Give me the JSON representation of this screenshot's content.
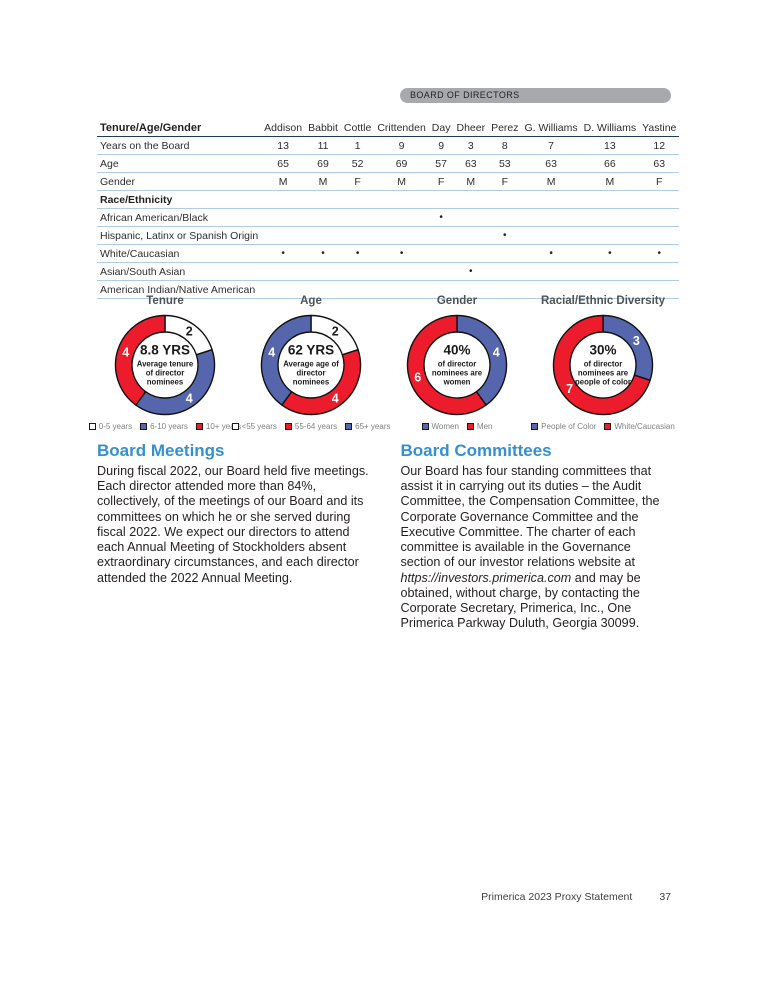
{
  "banner": {
    "label": "BOARD OF DIRECTORS"
  },
  "table": {
    "header_label": "Tenure/Age/Gender",
    "columns": [
      "Addison",
      "Babbit",
      "Cottle",
      "Crittenden",
      "Day",
      "Dheer",
      "Perez",
      "G. Williams",
      "D. Williams",
      "Yastine"
    ],
    "rows": [
      {
        "label": "Years on the Board",
        "section": false,
        "values": [
          "13",
          "11",
          "1",
          "9",
          "9",
          "3",
          "8",
          "7",
          "13",
          "12"
        ]
      },
      {
        "label": "Age",
        "section": false,
        "values": [
          "65",
          "69",
          "52",
          "69",
          "57",
          "63",
          "53",
          "63",
          "66",
          "63"
        ]
      },
      {
        "label": "Gender",
        "section": false,
        "values": [
          "M",
          "M",
          "F",
          "M",
          "F",
          "M",
          "F",
          "M",
          "M",
          "F"
        ]
      },
      {
        "label": "Race/Ethnicity",
        "section": true,
        "values": [
          "",
          "",
          "",
          "",
          "",
          "",
          "",
          "",
          "",
          ""
        ]
      },
      {
        "label": "African American/Black",
        "section": false,
        "values": [
          "",
          "",
          "",
          "",
          "•",
          "",
          "",
          "",
          "",
          ""
        ]
      },
      {
        "label": "Hispanic, Latinx or Spanish Origin",
        "section": false,
        "values": [
          "",
          "",
          "",
          "",
          "",
          "",
          "•",
          "",
          "",
          ""
        ]
      },
      {
        "label": "White/Caucasian",
        "section": false,
        "values": [
          "•",
          "•",
          "•",
          "•",
          "",
          "",
          "",
          "•",
          "•",
          "•"
        ]
      },
      {
        "label": "Asian/South Asian",
        "section": false,
        "values": [
          "",
          "",
          "",
          "",
          "",
          "•",
          "",
          "",
          "",
          ""
        ]
      },
      {
        "label": "American Indian/Native American",
        "section": false,
        "values": [
          "",
          "",
          "",
          "",
          "",
          "",
          "",
          "",
          "",
          ""
        ]
      }
    ]
  },
  "chart_data": [
    {
      "type": "pie",
      "subtype": "donut",
      "title": "Tenure",
      "center_value": "8.8 YRS",
      "center_caption": "Average tenure of director nominees",
      "legend_position": "bottom",
      "segments": [
        {
          "label": "0-5 years",
          "value": 2,
          "color": "#ffffff",
          "label_color": "#1a1a1a"
        },
        {
          "label": "6-10 years",
          "value": 4,
          "color": "#5566ad",
          "label_color": "#ffffff"
        },
        {
          "label": "10+ years",
          "value": 4,
          "color": "#ec1c2c",
          "label_color": "#ffffff"
        }
      ]
    },
    {
      "type": "pie",
      "subtype": "donut",
      "title": "Age",
      "center_value": "62 YRS",
      "center_caption": "Average age of director nominees",
      "legend_position": "bottom",
      "segments": [
        {
          "label": "<55 years",
          "value": 2,
          "color": "#ffffff",
          "label_color": "#1a1a1a"
        },
        {
          "label": "55-64 years",
          "value": 4,
          "color": "#ec1c2c",
          "label_color": "#ffffff"
        },
        {
          "label": "65+ years",
          "value": 4,
          "color": "#5566ad",
          "label_color": "#ffffff"
        }
      ]
    },
    {
      "type": "pie",
      "subtype": "donut",
      "title": "Gender",
      "center_value": "40%",
      "center_caption": "of director nominees are women",
      "legend_position": "bottom",
      "segments": [
        {
          "label": "Women",
          "value": 4,
          "color": "#5566ad",
          "label_color": "#ffffff"
        },
        {
          "label": "Men",
          "value": 6,
          "color": "#ec1c2c",
          "label_color": "#ffffff"
        }
      ]
    },
    {
      "type": "pie",
      "subtype": "donut",
      "title": "Racial/Ethnic Diversity",
      "center_value": "30%",
      "center_caption": "of director nominees are people of color",
      "legend_position": "bottom",
      "segments": [
        {
          "label": "People of Color",
          "value": 3,
          "color": "#5566ad",
          "label_color": "#ffffff"
        },
        {
          "label": "White/Caucasian",
          "value": 7,
          "color": "#ec1c2c",
          "label_color": "#ffffff"
        }
      ]
    }
  ],
  "sections": {
    "board_meetings": {
      "heading": "Board Meetings",
      "body": "During fiscal 2022, our Board held five meetings. Each director attended more than 84%, collectively, of the meetings of our Board and its committees on which he or she served during fiscal 2022. We expect our directors to attend each Annual Meeting of Stockholders absent extraordinary circumstances, and each director attended the 2022 Annual Meeting."
    },
    "board_committees": {
      "heading": "Board Committees",
      "body_before_link": "Our Board has four standing committees that assist it in carrying out its duties – the Audit Committee, the Compensation Committee, the Corporate Governance Committee and the Executive Committee. The charter of each committee is available in the Governance section of our investor relations website at ",
      "link_text": "https://investors.primerica.com",
      "body_after_link": " and may be obtained, without charge, by contacting the Corporate Secretary, Primerica, Inc., One Primerica Parkway Duluth, Georgia 30099."
    }
  },
  "footer": {
    "text": "Primerica 2023 Proxy Statement",
    "page_number": "37"
  },
  "colors": {
    "heading_blue": "#3590cc",
    "chart_blue": "#5566ad",
    "chart_red": "#ec1c2c",
    "banner_gray": "#a7a9ac",
    "table_rule_dark": "#1f3b57",
    "table_rule_light": "#aecde4"
  }
}
